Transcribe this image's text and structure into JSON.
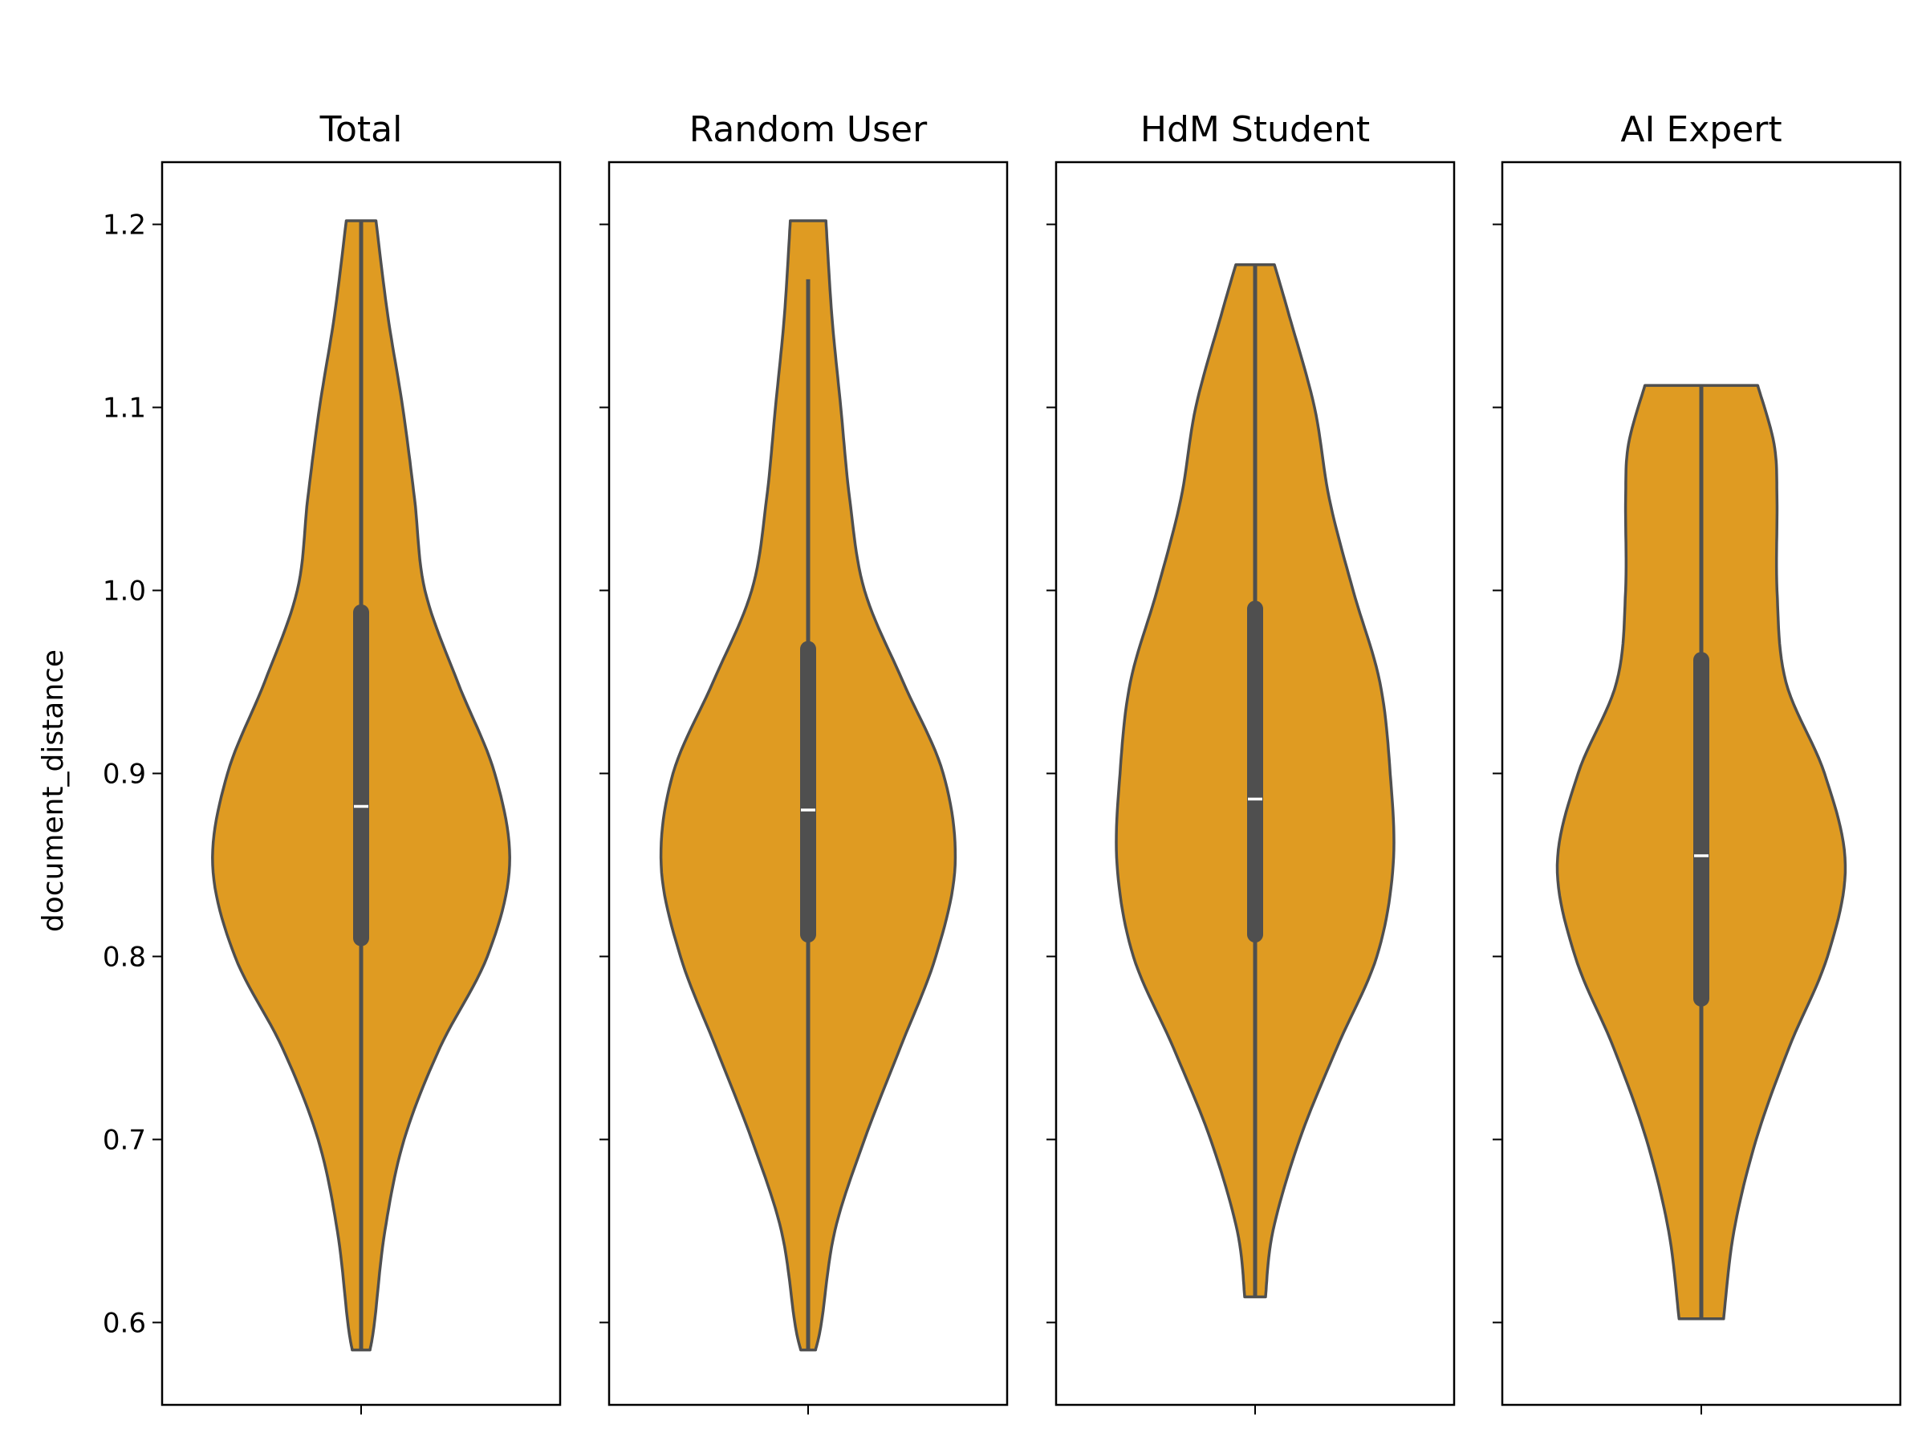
{
  "chart_data": {
    "type": "violin",
    "ylabel": "document_distance",
    "ylim": [
      0.555,
      1.234
    ],
    "yticks": [
      "0.6",
      "0.7",
      "0.8",
      "0.9",
      "1.0",
      "1.1",
      "1.2"
    ],
    "sharey": true,
    "style": {
      "violin_fill": "#df9b22",
      "edge_color": "#4f4f4f",
      "median_color": "#ffffff"
    },
    "panels": [
      {
        "title": "Total",
        "min": 0.585,
        "max": 1.202,
        "q1": 0.81,
        "median": 0.882,
        "q3": 0.988,
        "whisker_low": 0.585,
        "whisker_high": 1.202,
        "density": [
          [
            0.585,
            0.06
          ],
          [
            0.6,
            0.09
          ],
          [
            0.65,
            0.16
          ],
          [
            0.7,
            0.29
          ],
          [
            0.75,
            0.53
          ],
          [
            0.8,
            0.85
          ],
          [
            0.85,
            1.0
          ],
          [
            0.9,
            0.9
          ],
          [
            0.95,
            0.65
          ],
          [
            1.0,
            0.43
          ],
          [
            1.05,
            0.36
          ],
          [
            1.1,
            0.28
          ],
          [
            1.15,
            0.18
          ],
          [
            1.202,
            0.1
          ]
        ]
      },
      {
        "title": "Random User",
        "min": 0.585,
        "max": 1.202,
        "q1": 0.812,
        "median": 0.88,
        "q3": 0.968,
        "whisker_low": 0.585,
        "whisker_high": 1.17,
        "density": [
          [
            0.585,
            0.05
          ],
          [
            0.6,
            0.09
          ],
          [
            0.65,
            0.18
          ],
          [
            0.7,
            0.38
          ],
          [
            0.75,
            0.62
          ],
          [
            0.8,
            0.86
          ],
          [
            0.85,
            0.99
          ],
          [
            0.9,
            0.91
          ],
          [
            0.95,
            0.64
          ],
          [
            1.0,
            0.38
          ],
          [
            1.05,
            0.28
          ],
          [
            1.1,
            0.22
          ],
          [
            1.15,
            0.16
          ],
          [
            1.202,
            0.12
          ]
        ]
      },
      {
        "title": "HdM Student",
        "min": 0.614,
        "max": 1.178,
        "q1": 0.812,
        "median": 0.886,
        "q3": 0.99,
        "whisker_low": 0.614,
        "whisker_high": 1.178,
        "density": [
          [
            0.614,
            0.07
          ],
          [
            0.65,
            0.12
          ],
          [
            0.7,
            0.3
          ],
          [
            0.75,
            0.55
          ],
          [
            0.8,
            0.82
          ],
          [
            0.85,
            0.93
          ],
          [
            0.9,
            0.91
          ],
          [
            0.95,
            0.84
          ],
          [
            1.0,
            0.66
          ],
          [
            1.05,
            0.5
          ],
          [
            1.1,
            0.4
          ],
          [
            1.15,
            0.23
          ],
          [
            1.178,
            0.13
          ]
        ]
      },
      {
        "title": "AI Expert",
        "min": 0.602,
        "max": 1.112,
        "q1": 0.777,
        "median": 0.855,
        "q3": 0.962,
        "whisker_low": 0.602,
        "whisker_high": 1.112,
        "density": [
          [
            0.602,
            0.15
          ],
          [
            0.65,
            0.22
          ],
          [
            0.7,
            0.37
          ],
          [
            0.75,
            0.59
          ],
          [
            0.8,
            0.85
          ],
          [
            0.85,
            0.97
          ],
          [
            0.9,
            0.83
          ],
          [
            0.95,
            0.57
          ],
          [
            1.0,
            0.51
          ],
          [
            1.05,
            0.51
          ],
          [
            1.08,
            0.49
          ],
          [
            1.112,
            0.38
          ]
        ]
      }
    ]
  }
}
